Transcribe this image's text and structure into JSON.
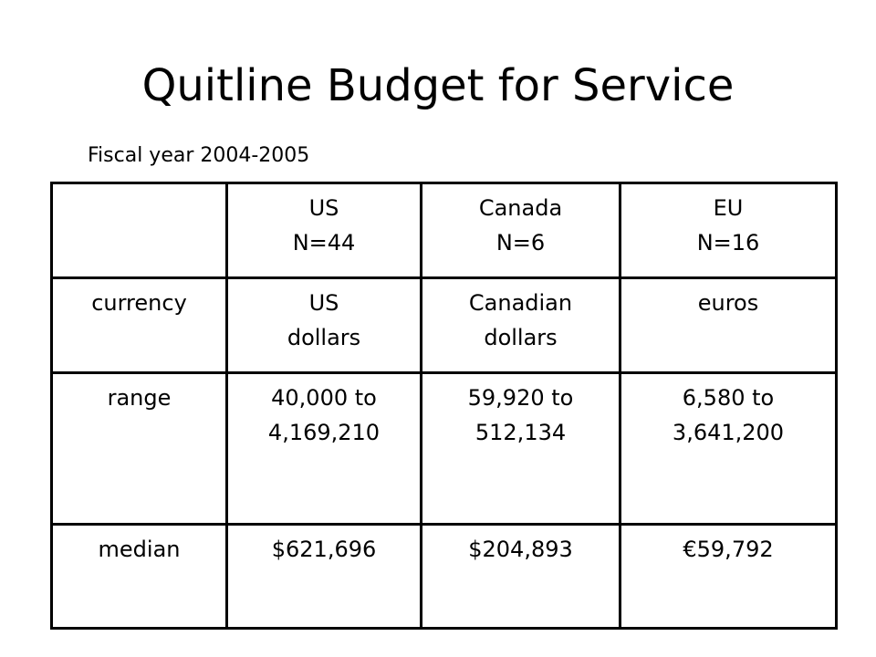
{
  "slide": {
    "title": "Quitline Budget for Service",
    "subtitle": "Fiscal year 2004-2005"
  },
  "table": {
    "header": [
      {
        "lines": [
          ""
        ]
      },
      {
        "lines": [
          "US",
          "N=44"
        ]
      },
      {
        "lines": [
          "Canada",
          "N=6"
        ]
      },
      {
        "lines": [
          "EU",
          "N=16"
        ]
      }
    ],
    "rows": [
      {
        "label": "currency",
        "cells": [
          {
            "lines": [
              "US",
              "dollars"
            ]
          },
          {
            "lines": [
              "Canadian",
              "dollars"
            ]
          },
          {
            "lines": [
              "euros"
            ]
          }
        ]
      },
      {
        "label": "range",
        "cells": [
          {
            "lines": [
              "40,000 to",
              "4,169,210"
            ]
          },
          {
            "lines": [
              "59,920 to",
              "512,134"
            ]
          },
          {
            "lines": [
              "6,580 to",
              "3,641,200"
            ]
          }
        ]
      },
      {
        "label": "median",
        "cells": [
          {
            "lines": [
              "$621,696"
            ]
          },
          {
            "lines": [
              "$204,893"
            ]
          },
          {
            "lines": [
              "€59,792"
            ]
          }
        ]
      }
    ]
  }
}
